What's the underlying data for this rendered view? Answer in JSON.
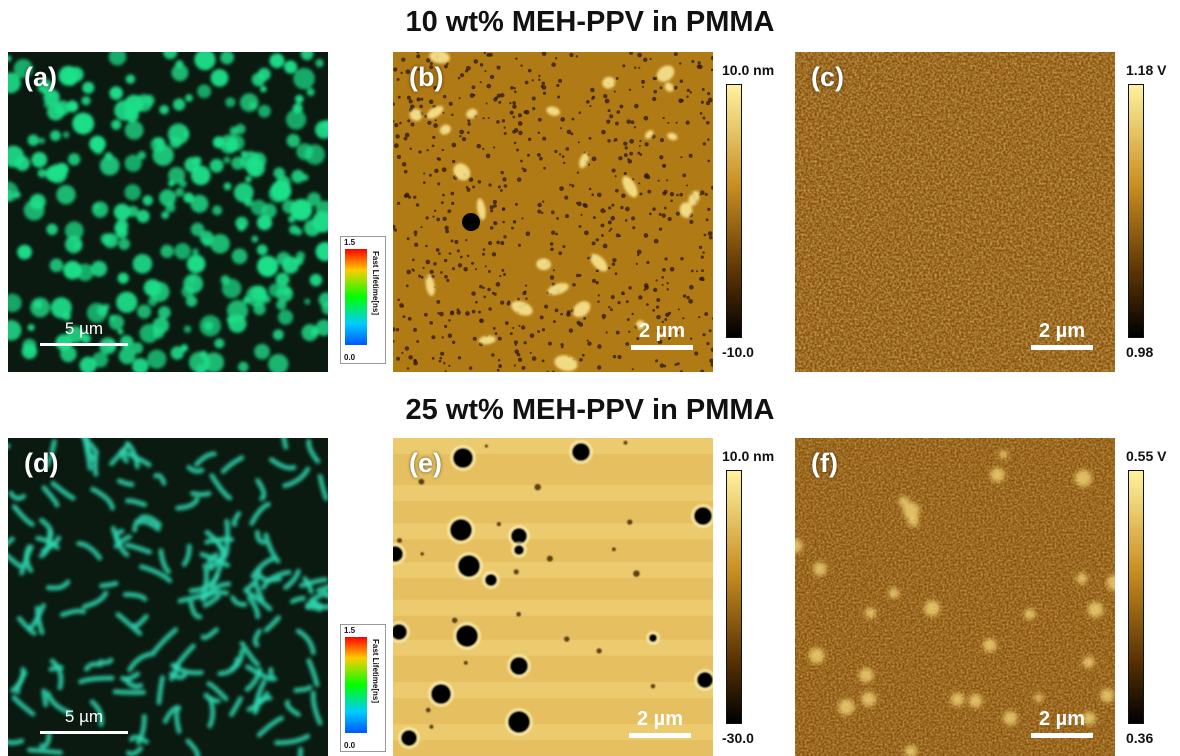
{
  "rows": [
    {
      "title": "10 wt% MEH-PPV in PMMA",
      "flim": {
        "label": "(a)",
        "scale": "5 µm",
        "cbar": {
          "max": "1.5",
          "min": "0.0",
          "label": "Fast Lifetime[ns]"
        }
      },
      "afm": {
        "label": "(b)",
        "scale": "2 µm",
        "cbar": {
          "max": "10.0 nm",
          "min": "-10.0"
        }
      },
      "kpfm": {
        "label": "(c)",
        "scale": "2 µm",
        "cbar": {
          "max": "1.18 V",
          "min": "0.98"
        }
      }
    },
    {
      "title": "25 wt% MEH-PPV in PMMA",
      "flim": {
        "label": "(d)",
        "scale": "5 µm",
        "cbar": {
          "max": "1.5",
          "min": "0.0",
          "label": "Fast Lifetime[ns]"
        }
      },
      "afm": {
        "label": "(e)",
        "scale": "2 µm",
        "cbar": {
          "max": "10.0 nm",
          "min": "-30.0"
        }
      },
      "kpfm": {
        "label": "(f)",
        "scale": "2 µm",
        "cbar": {
          "max": "0.55 V",
          "min": "0.36"
        }
      }
    }
  ],
  "colors": {
    "flim_bg": "#0a1a10",
    "flim_dot_a": "#1ee08a",
    "flim_dot_d": "#2fd8b0",
    "afm_b_base": "#b07a14",
    "afm_e_base": "#e6c060",
    "kpfm_base": "#8a5208",
    "colorbar_top": "#fff2a0",
    "colorbar_bottom": "#000000"
  }
}
